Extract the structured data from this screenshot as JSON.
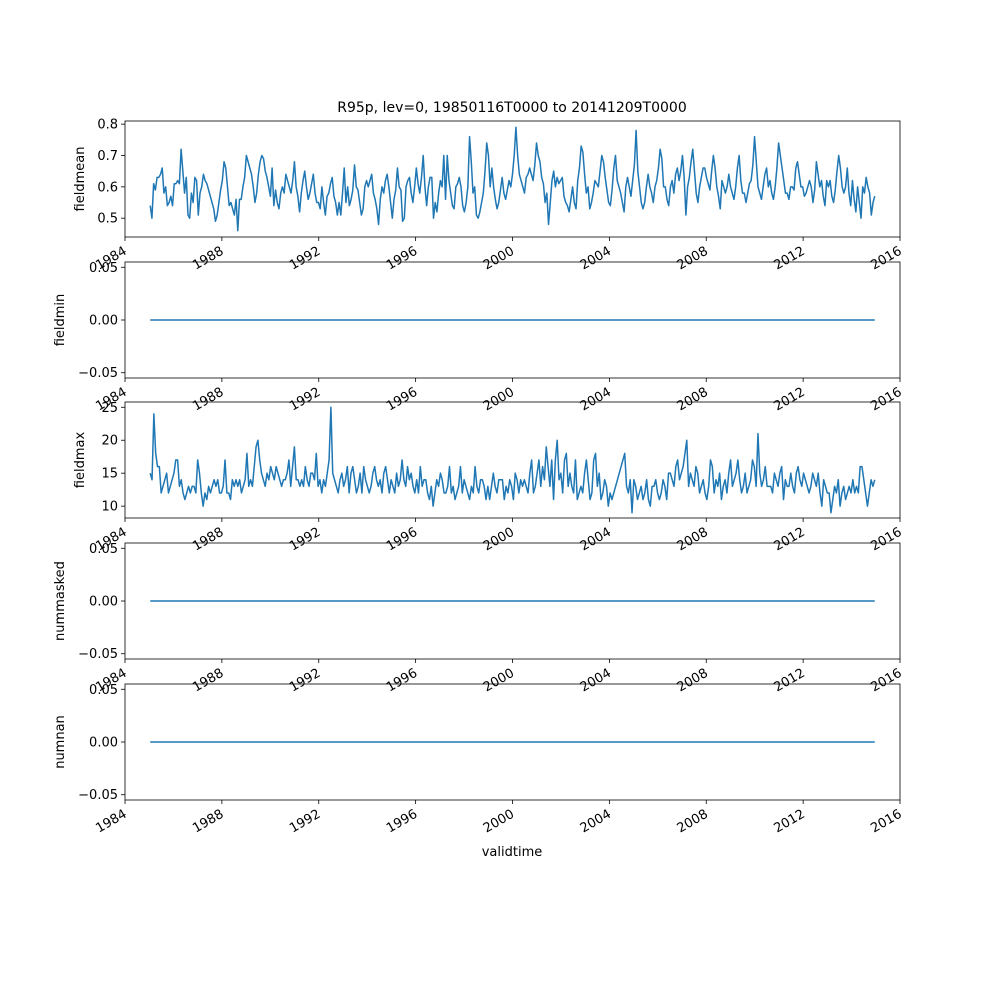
{
  "figure": {
    "title": "R95p, lev=0, 19850116T0000 to 20141209T0000",
    "xlabel": "validtime",
    "line_color": "#1f77b4"
  },
  "chart_data": [
    {
      "type": "line",
      "ylabel": "fieldmean",
      "xlabel": "validtime",
      "xlim": [
        "1984-01-01",
        "2016-01-01"
      ],
      "ylim": [
        0.44,
        0.81
      ],
      "yticks": [
        0.5,
        0.6,
        0.7,
        0.8
      ],
      "ytick_labels": [
        "0.5",
        "0.6",
        "0.7",
        "0.8"
      ],
      "xtick_labels": [
        "1984",
        "1988",
        "1992",
        "1996",
        "2000",
        "2004",
        "2008",
        "2012",
        "2016"
      ],
      "grid": false,
      "x_start": "1985-01",
      "x_end": "2014-12",
      "series": [
        {
          "values": [
            0.54,
            0.5,
            0.61,
            0.59,
            0.63,
            0.63,
            0.64,
            0.66,
            0.58,
            0.6,
            0.54,
            0.55,
            0.57,
            0.54,
            0.61,
            0.61,
            0.62,
            0.61,
            0.72,
            0.65,
            0.58,
            0.63,
            0.51,
            0.5,
            0.58,
            0.55,
            0.63,
            0.62,
            0.51,
            0.58,
            0.6,
            0.64,
            0.62,
            0.61,
            0.59,
            0.57,
            0.55,
            0.53,
            0.49,
            0.51,
            0.55,
            0.59,
            0.62,
            0.68,
            0.66,
            0.6,
            0.54,
            0.55,
            0.53,
            0.51,
            0.56,
            0.46,
            0.56,
            0.56,
            0.6,
            0.63,
            0.7,
            0.68,
            0.66,
            0.64,
            0.6,
            0.55,
            0.58,
            0.64,
            0.68,
            0.7,
            0.69,
            0.65,
            0.63,
            0.6,
            0.57,
            0.66,
            0.54,
            0.59,
            0.55,
            0.53,
            0.58,
            0.6,
            0.58,
            0.64,
            0.62,
            0.6,
            0.58,
            0.62,
            0.68,
            0.6,
            0.57,
            0.52,
            0.58,
            0.62,
            0.65,
            0.6,
            0.56,
            0.58,
            0.61,
            0.64,
            0.58,
            0.55,
            0.55,
            0.53,
            0.6,
            0.55,
            0.51,
            0.57,
            0.58,
            0.61,
            0.63,
            0.57,
            0.55,
            0.51,
            0.55,
            0.51,
            0.58,
            0.66,
            0.55,
            0.6,
            0.54,
            0.56,
            0.59,
            0.67,
            0.6,
            0.59,
            0.55,
            0.51,
            0.53,
            0.6,
            0.62,
            0.6,
            0.62,
            0.64,
            0.58,
            0.56,
            0.53,
            0.48,
            0.56,
            0.6,
            0.58,
            0.62,
            0.64,
            0.6,
            0.55,
            0.5,
            0.56,
            0.59,
            0.66,
            0.6,
            0.59,
            0.49,
            0.5,
            0.6,
            0.62,
            0.63,
            0.58,
            0.55,
            0.6,
            0.66,
            0.61,
            0.58,
            0.63,
            0.7,
            0.6,
            0.54,
            0.6,
            0.63,
            0.63,
            0.5,
            0.55,
            0.52,
            0.58,
            0.62,
            0.6,
            0.7,
            0.56,
            0.7,
            0.62,
            0.58,
            0.54,
            0.53,
            0.6,
            0.61,
            0.63,
            0.6,
            0.54,
            0.52,
            0.55,
            0.6,
            0.76,
            0.68,
            0.58,
            0.6,
            0.51,
            0.5,
            0.52,
            0.55,
            0.58,
            0.65,
            0.74,
            0.7,
            0.6,
            0.66,
            0.6,
            0.56,
            0.53,
            0.55,
            0.59,
            0.63,
            0.58,
            0.56,
            0.59,
            0.62,
            0.6,
            0.64,
            0.7,
            0.79,
            0.7,
            0.64,
            0.62,
            0.6,
            0.58,
            0.63,
            0.64,
            0.66,
            0.64,
            0.62,
            0.67,
            0.74,
            0.7,
            0.68,
            0.63,
            0.61,
            0.55,
            0.58,
            0.48,
            0.55,
            0.62,
            0.65,
            0.6,
            0.63,
            0.61,
            0.62,
            0.63,
            0.57,
            0.55,
            0.54,
            0.52,
            0.56,
            0.6,
            0.55,
            0.53,
            0.62,
            0.66,
            0.73,
            0.71,
            0.64,
            0.58,
            0.6,
            0.53,
            0.55,
            0.58,
            0.62,
            0.61,
            0.6,
            0.65,
            0.7,
            0.68,
            0.63,
            0.59,
            0.55,
            0.54,
            0.59,
            0.66,
            0.7,
            0.62,
            0.6,
            0.58,
            0.55,
            0.52,
            0.6,
            0.63,
            0.6,
            0.57,
            0.62,
            0.67,
            0.78,
            0.65,
            0.6,
            0.55,
            0.53,
            0.55,
            0.6,
            0.64,
            0.6,
            0.58,
            0.55,
            0.6,
            0.62,
            0.66,
            0.72,
            0.69,
            0.6,
            0.6,
            0.56,
            0.54,
            0.6,
            0.62,
            0.58,
            0.64,
            0.66,
            0.62,
            0.65,
            0.7,
            0.63,
            0.51,
            0.6,
            0.63,
            0.68,
            0.72,
            0.65,
            0.58,
            0.55,
            0.6,
            0.63,
            0.66,
            0.66,
            0.63,
            0.61,
            0.59,
            0.65,
            0.7,
            0.66,
            0.6,
            0.57,
            0.53,
            0.62,
            0.6,
            0.58,
            0.6,
            0.64,
            0.6,
            0.58,
            0.56,
            0.6,
            0.66,
            0.7,
            0.62,
            0.58,
            0.58,
            0.55,
            0.58,
            0.61,
            0.62,
            0.67,
            0.76,
            0.68,
            0.6,
            0.58,
            0.56,
            0.6,
            0.64,
            0.66,
            0.6,
            0.62,
            0.58,
            0.56,
            0.6,
            0.66,
            0.74,
            0.7,
            0.66,
            0.62,
            0.58,
            0.58,
            0.56,
            0.6,
            0.6,
            0.59,
            0.66,
            0.68,
            0.64,
            0.6,
            0.6,
            0.57,
            0.58,
            0.6,
            0.62,
            0.6,
            0.55,
            0.59,
            0.68,
            0.64,
            0.6,
            0.62,
            0.57,
            0.54,
            0.62,
            0.6,
            0.62,
            0.57,
            0.55,
            0.59,
            0.65,
            0.7,
            0.66,
            0.6,
            0.58,
            0.6,
            0.66,
            0.58,
            0.54,
            0.62,
            0.56,
            0.52,
            0.6,
            0.55,
            0.5,
            0.6,
            0.58,
            0.63,
            0.6,
            0.58,
            0.51,
            0.55,
            0.57
          ]
        }
      ]
    },
    {
      "type": "line",
      "ylabel": "fieldmin",
      "xlabel": "validtime",
      "xlim": [
        "1984-01-01",
        "2016-01-01"
      ],
      "ylim": [
        -0.055,
        0.055
      ],
      "yticks": [
        -0.05,
        0.0,
        0.05
      ],
      "ytick_labels": [
        "−0.05",
        "0.00",
        "0.05"
      ],
      "xtick_labels": [
        "1984",
        "1988",
        "1992",
        "1996",
        "2000",
        "2004",
        "2008",
        "2012",
        "2016"
      ],
      "grid": false,
      "x_start": "1985-01",
      "x_end": "2014-12",
      "series": [
        {
          "constant": 0
        }
      ]
    },
    {
      "type": "line",
      "ylabel": "fieldmax",
      "xlabel": "validtime",
      "xlim": [
        "1984-01-01",
        "2016-01-01"
      ],
      "ylim": [
        8.2,
        25.8
      ],
      "yticks": [
        10,
        15,
        20,
        25
      ],
      "ytick_labels": [
        "10",
        "15",
        "20",
        "25"
      ],
      "xtick_labels": [
        "1984",
        "1988",
        "1992",
        "1996",
        "2000",
        "2004",
        "2008",
        "2012",
        "2016"
      ],
      "grid": false,
      "x_start": "1985-01",
      "x_end": "2014-12",
      "series": [
        {
          "values": [
            15,
            14,
            24,
            18,
            16,
            16,
            12,
            13,
            14,
            15,
            12,
            13,
            14,
            15,
            17,
            17,
            13,
            14,
            12,
            11,
            12,
            13,
            12,
            13,
            13,
            12,
            17,
            15,
            12,
            10,
            12,
            11,
            13,
            12,
            13,
            14,
            13,
            14,
            12,
            12,
            13,
            17,
            12,
            12,
            11,
            14,
            13,
            14,
            13,
            14,
            12,
            13,
            14,
            18,
            13,
            14,
            13,
            16,
            19,
            20,
            17,
            15,
            14,
            13,
            15,
            14,
            16,
            15,
            14,
            16,
            15,
            14,
            13,
            14,
            14,
            15,
            17,
            13,
            16,
            19,
            14,
            14,
            13,
            14,
            13,
            16,
            14,
            13,
            15,
            15,
            14,
            18,
            13,
            14,
            12,
            14,
            13,
            15,
            17,
            25,
            15,
            14,
            13,
            12,
            14,
            15,
            13,
            14,
            16,
            12,
            15,
            16,
            14,
            12,
            13,
            15,
            12,
            16,
            14,
            13,
            12,
            13,
            15,
            16,
            14,
            13,
            14,
            12,
            15,
            16,
            14,
            12,
            14,
            13,
            12,
            15,
            13,
            14,
            17,
            14,
            13,
            16,
            14,
            15,
            13,
            12,
            14,
            12,
            16,
            13,
            14,
            14,
            12,
            11,
            13,
            10,
            12,
            14,
            13,
            15,
            14,
            12,
            12,
            13,
            16,
            12,
            13,
            11,
            12,
            13,
            16,
            12,
            14,
            13,
            12,
            11,
            13,
            12,
            16,
            13,
            12,
            14,
            14,
            13,
            11,
            13,
            11,
            13,
            15,
            13,
            12,
            14,
            14,
            14,
            11,
            13,
            12,
            14,
            13,
            11,
            15,
            14,
            12,
            14,
            13,
            14,
            13,
            12,
            15,
            17,
            12,
            13,
            15,
            17,
            13,
            16,
            14,
            19,
            16,
            13,
            17,
            11,
            17,
            20,
            14,
            15,
            12,
            17,
            18,
            13,
            15,
            13,
            12,
            17,
            11,
            12,
            13,
            12,
            15,
            17,
            14,
            11,
            12,
            17,
            18,
            13,
            15,
            11,
            12,
            14,
            13,
            10,
            12,
            11,
            12,
            13,
            14,
            15,
            16,
            17,
            18,
            13,
            12,
            14,
            9,
            14,
            13,
            11,
            12,
            13,
            11,
            12,
            14,
            11,
            10,
            13,
            13,
            14,
            12,
            11,
            12,
            14,
            13,
            11,
            15,
            15,
            14,
            13,
            16,
            17,
            14,
            15,
            16,
            18,
            20,
            13,
            15,
            14,
            13,
            16,
            15,
            12,
            13,
            14,
            12,
            11,
            13,
            17,
            16,
            12,
            14,
            13,
            15,
            11,
            13,
            14,
            12,
            15,
            17,
            13,
            14,
            15,
            17,
            14,
            12,
            13,
            15,
            12,
            13,
            14,
            17,
            16,
            13,
            21,
            15,
            13,
            14,
            16,
            13,
            13,
            13,
            12,
            15,
            14,
            13,
            15,
            16,
            11,
            14,
            13,
            13,
            15,
            13,
            12,
            15,
            16,
            14,
            13,
            15,
            14,
            13,
            12,
            13,
            15,
            14,
            13,
            15,
            12,
            10,
            14,
            13,
            12,
            12,
            9,
            11,
            13,
            12,
            14,
            10,
            12,
            13,
            11,
            12,
            13,
            12,
            14,
            12,
            13,
            12,
            16,
            16,
            14,
            12,
            10,
            12,
            14,
            13,
            14
          ]
        }
      ]
    },
    {
      "type": "line",
      "ylabel": "nummasked",
      "xlabel": "validtime",
      "xlim": [
        "1984-01-01",
        "2016-01-01"
      ],
      "ylim": [
        -0.055,
        0.055
      ],
      "yticks": [
        -0.05,
        0.0,
        0.05
      ],
      "ytick_labels": [
        "−0.05",
        "0.00",
        "0.05"
      ],
      "xtick_labels": [
        "1984",
        "1988",
        "1992",
        "1996",
        "2000",
        "2004",
        "2008",
        "2012",
        "2016"
      ],
      "grid": false,
      "x_start": "1985-01",
      "x_end": "2014-12",
      "series": [
        {
          "constant": 0
        }
      ]
    },
    {
      "type": "line",
      "ylabel": "numnan",
      "xlabel": "validtime",
      "xlim": [
        "1984-01-01",
        "2016-01-01"
      ],
      "ylim": [
        -0.055,
        0.055
      ],
      "yticks": [
        -0.05,
        0.0,
        0.05
      ],
      "ytick_labels": [
        "−0.05",
        "0.00",
        "0.05"
      ],
      "xtick_labels": [
        "1984",
        "1988",
        "1992",
        "1996",
        "2000",
        "2004",
        "2008",
        "2012",
        "2016"
      ],
      "grid": false,
      "x_start": "1985-01",
      "x_end": "2014-12",
      "series": [
        {
          "constant": 0
        }
      ]
    }
  ]
}
